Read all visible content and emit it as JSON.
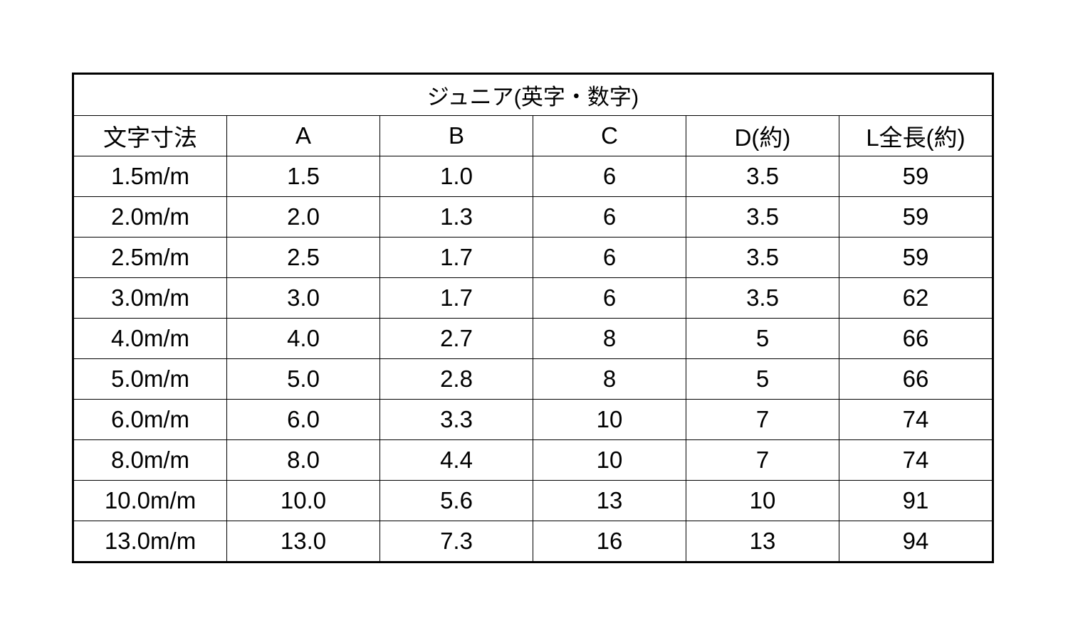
{
  "title": "ジュニア(英字・数字)",
  "columns": [
    "文字寸法",
    "A",
    "B",
    "C",
    "D(約)",
    "L全長(約)"
  ],
  "rows": [
    [
      "1.5m/m",
      "1.5",
      "1.0",
      "6",
      "3.5",
      "59"
    ],
    [
      "2.0m/m",
      "2.0",
      "1.3",
      "6",
      "3.5",
      "59"
    ],
    [
      "2.5m/m",
      "2.5",
      "1.7",
      "6",
      "3.5",
      "59"
    ],
    [
      "3.0m/m",
      "3.0",
      "1.7",
      "6",
      "3.5",
      "62"
    ],
    [
      "4.0m/m",
      "4.0",
      "2.7",
      "8",
      "5",
      "66"
    ],
    [
      "5.0m/m",
      "5.0",
      "2.8",
      "8",
      "5",
      "66"
    ],
    [
      "6.0m/m",
      "6.0",
      "3.3",
      "10",
      "7",
      "74"
    ],
    [
      "8.0m/m",
      "8.0",
      "4.4",
      "10",
      "7",
      "74"
    ],
    [
      "10.0m/m",
      "10.0",
      "5.6",
      "13",
      "10",
      "91"
    ],
    [
      "13.0m/m",
      "13.0",
      "7.3",
      "16",
      "13",
      "94"
    ]
  ]
}
